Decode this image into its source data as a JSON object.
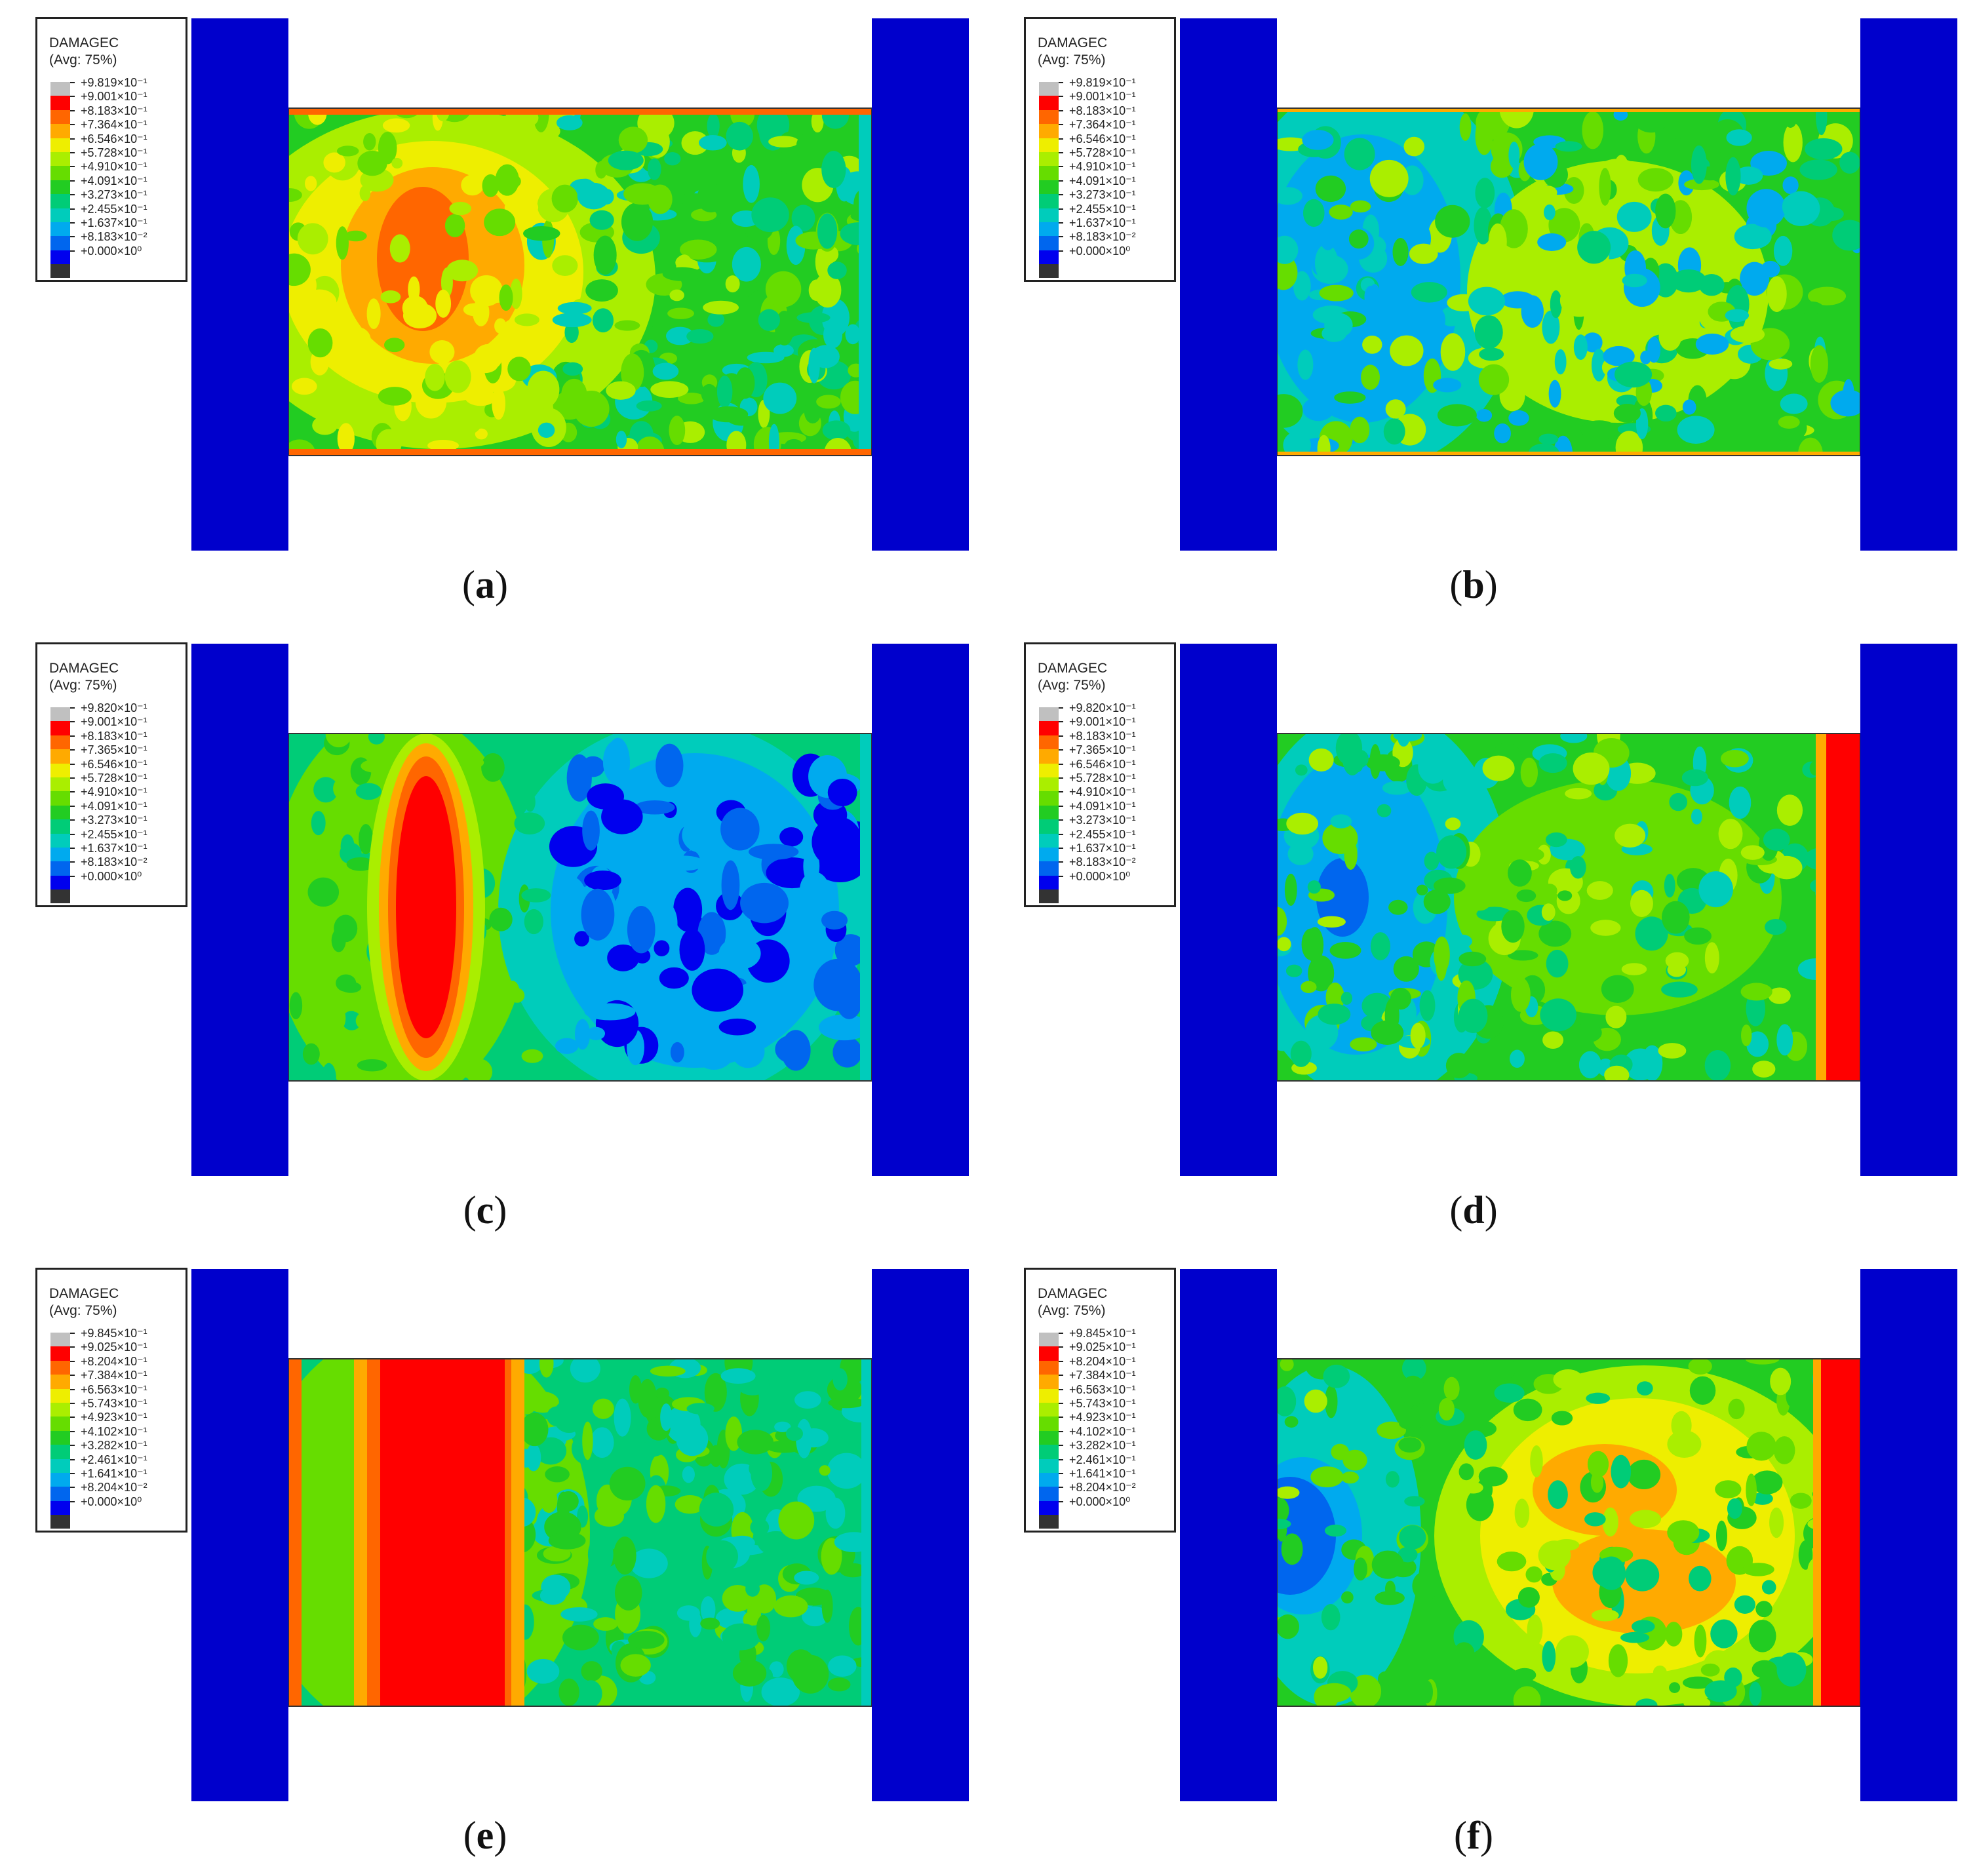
{
  "legend_title": "DAMAGEC",
  "legend_subtitle": "(Avg: 75%)",
  "colors": [
    "#c0c0c0",
    "#ff0000",
    "#ff6600",
    "#ffaa00",
    "#eeee00",
    "#aaee00",
    "#66dd00",
    "#22cc22",
    "#00cc77",
    "#00ccbb",
    "#00aaee",
    "#0066ee",
    "#0000ee",
    "#333333"
  ],
  "platen_color": "#0000cc",
  "panels": [
    {
      "id": "a",
      "caption_letter": "a",
      "legend": [
        "+9.819×10⁻¹",
        "+9.001×10⁻¹",
        "+8.183×10⁻¹",
        "+7.364×10⁻¹",
        "+6.546×10⁻¹",
        "+5.728×10⁻¹",
        "+4.910×10⁻¹",
        "+4.091×10⁻¹",
        "+3.273×10⁻¹",
        "+2.455×10⁻¹",
        "+1.637×10⁻¹",
        "+8.183×10⁻²",
        "+0.000×10⁰"
      ]
    },
    {
      "id": "b",
      "caption_letter": "b",
      "legend": [
        "+9.819×10⁻¹",
        "+9.001×10⁻¹",
        "+8.183×10⁻¹",
        "+7.364×10⁻¹",
        "+6.546×10⁻¹",
        "+5.728×10⁻¹",
        "+4.910×10⁻¹",
        "+4.091×10⁻¹",
        "+3.273×10⁻¹",
        "+2.455×10⁻¹",
        "+1.637×10⁻¹",
        "+8.183×10⁻²",
        "+0.000×10⁰"
      ]
    },
    {
      "id": "c",
      "caption_letter": "c",
      "legend": [
        "+9.820×10⁻¹",
        "+9.001×10⁻¹",
        "+8.183×10⁻¹",
        "+7.365×10⁻¹",
        "+6.546×10⁻¹",
        "+5.728×10⁻¹",
        "+4.910×10⁻¹",
        "+4.091×10⁻¹",
        "+3.273×10⁻¹",
        "+2.455×10⁻¹",
        "+1.637×10⁻¹",
        "+8.183×10⁻²",
        "+0.000×10⁰"
      ]
    },
    {
      "id": "d",
      "caption_letter": "d",
      "legend": [
        "+9.820×10⁻¹",
        "+9.001×10⁻¹",
        "+8.183×10⁻¹",
        "+7.365×10⁻¹",
        "+6.546×10⁻¹",
        "+5.728×10⁻¹",
        "+4.910×10⁻¹",
        "+4.091×10⁻¹",
        "+3.273×10⁻¹",
        "+2.455×10⁻¹",
        "+1.637×10⁻¹",
        "+8.183×10⁻²",
        "+0.000×10⁰"
      ]
    },
    {
      "id": "e",
      "caption_letter": "e",
      "legend": [
        "+9.845×10⁻¹",
        "+9.025×10⁻¹",
        "+8.204×10⁻¹",
        "+7.384×10⁻¹",
        "+6.563×10⁻¹",
        "+5.743×10⁻¹",
        "+4.923×10⁻¹",
        "+4.102×10⁻¹",
        "+3.282×10⁻¹",
        "+2.461×10⁻¹",
        "+1.641×10⁻¹",
        "+8.204×10⁻²",
        "+0.000×10⁰"
      ]
    },
    {
      "id": "f",
      "caption_letter": "f",
      "legend": [
        "+9.845×10⁻¹",
        "+9.025×10⁻¹",
        "+8.204×10⁻¹",
        "+7.384×10⁻¹",
        "+6.563×10⁻¹",
        "+5.743×10⁻¹",
        "+4.923×10⁻¹",
        "+4.102×10⁻¹",
        "+3.282×10⁻¹",
        "+2.461×10⁻¹",
        "+1.641×10⁻¹",
        "+8.204×10⁻²",
        "+0.000×10⁰"
      ]
    }
  ]
}
